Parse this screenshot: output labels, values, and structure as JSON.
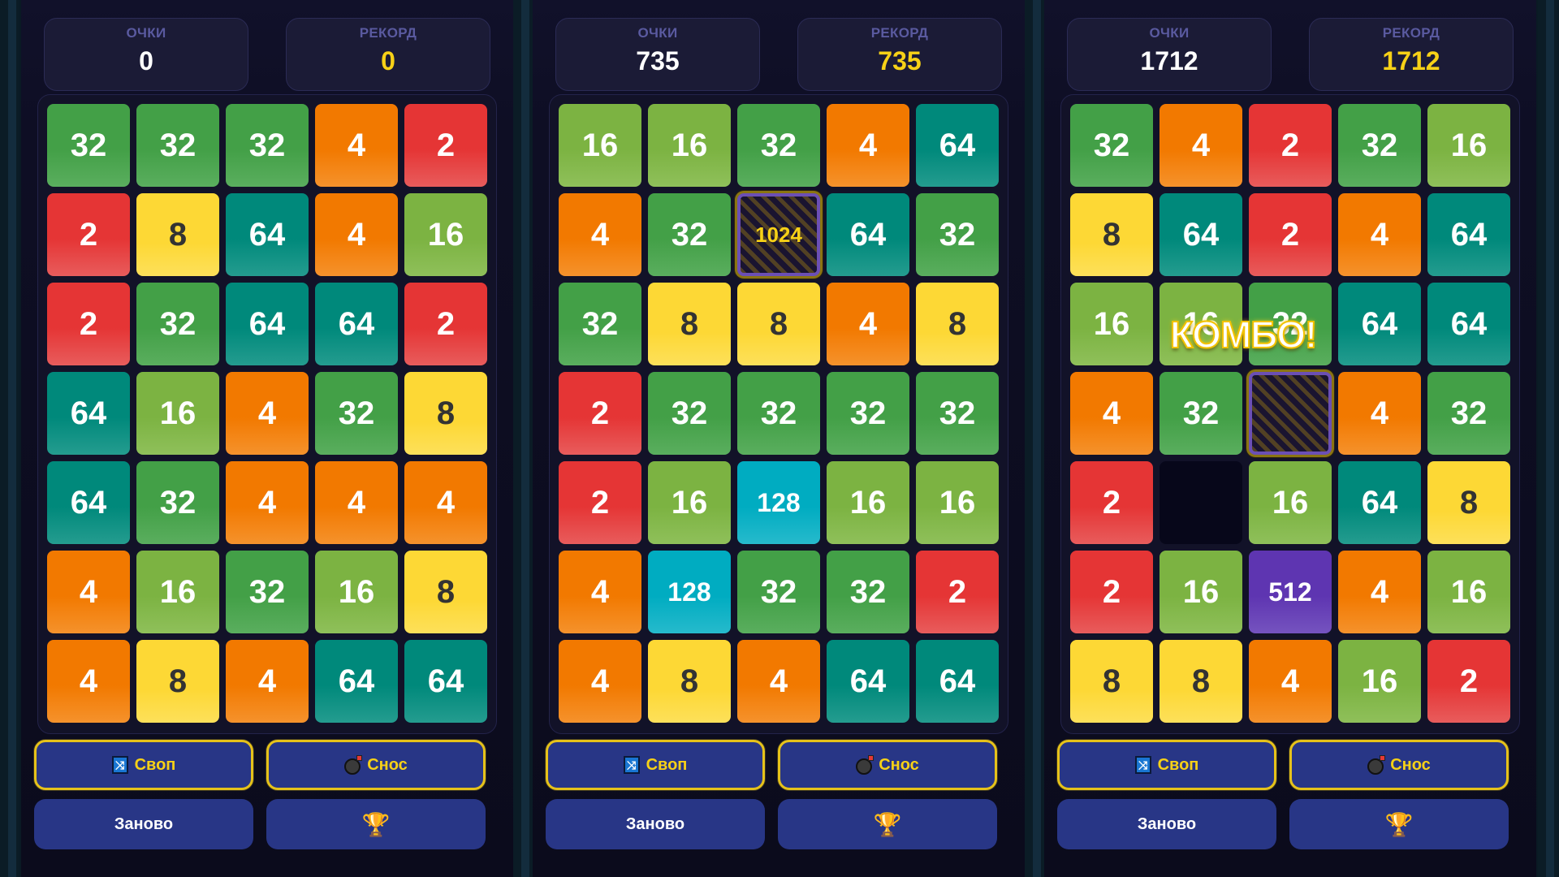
{
  "labels": {
    "score": "ОЧКИ",
    "record": "РЕКОРД",
    "swap": "Своп",
    "demolish": "Снос",
    "restart": "Заново",
    "combo": "КОМБО!"
  },
  "icons": {
    "swap": "shuffle-icon",
    "demolish": "bomb-icon",
    "leaderboard": "trophy-icon",
    "trophy_glyph": "🏆",
    "shuffle_glyph": "⤨"
  },
  "colors": {
    "t2": "#e53535",
    "t4": "#f27900",
    "t8": "#fdd835",
    "t16": "#7cb342",
    "t32": "#43a047",
    "t64": "#00897b",
    "t128": "#00acc1",
    "t512": "#5e35b1",
    "special_text": "#f7d117",
    "record_text": "#f7d117",
    "button_bg": "#283686",
    "powerup_border": "#e6c21a"
  },
  "panels": [
    {
      "score": "0",
      "record": "0",
      "grid": [
        [
          "32",
          "32",
          "32",
          "4",
          "2"
        ],
        [
          "2",
          "8",
          "64",
          "4",
          "16"
        ],
        [
          "2",
          "32",
          "64",
          "64",
          "2"
        ],
        [
          "64",
          "16",
          "4",
          "32",
          "8"
        ],
        [
          "64",
          "32",
          "4",
          "4",
          "4"
        ],
        [
          "4",
          "16",
          "32",
          "16",
          "8"
        ],
        [
          "4",
          "8",
          "4",
          "64",
          "64"
        ]
      ]
    },
    {
      "score": "735",
      "record": "735",
      "grid": [
        [
          "16",
          "16",
          "32",
          "4",
          "64"
        ],
        [
          "4",
          "32",
          "1024*",
          "64",
          "32"
        ],
        [
          "32",
          "8",
          "8",
          "4",
          "8"
        ],
        [
          "2",
          "32",
          "32",
          "32",
          "32"
        ],
        [
          "2",
          "16",
          "128",
          "16",
          "16"
        ],
        [
          "4",
          "128",
          "32",
          "32",
          "2"
        ],
        [
          "4",
          "8",
          "4",
          "64",
          "64"
        ]
      ]
    },
    {
      "score": "1712",
      "record": "1712",
      "combo_visible": true,
      "grid": [
        [
          "32",
          "4",
          "2",
          "32",
          "16"
        ],
        [
          "8",
          "64",
          "2",
          "4",
          "64"
        ],
        [
          "16",
          "16",
          "32",
          "64",
          "64"
        ],
        [
          "4",
          "32",
          "*",
          "4",
          "32"
        ],
        [
          "2",
          "",
          "16",
          "64",
          "8"
        ],
        [
          "2",
          "16",
          "512",
          "4",
          "16"
        ],
        [
          "8",
          "8",
          "4",
          "16",
          "2"
        ]
      ]
    }
  ]
}
